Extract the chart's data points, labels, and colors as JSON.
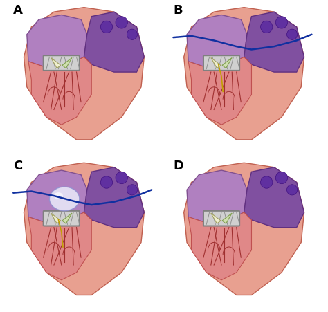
{
  "title": "",
  "panels": [
    "A",
    "B",
    "C",
    "D"
  ],
  "grid_rows": 2,
  "grid_cols": 2,
  "background_color": "#ffffff",
  "label_fontsize": 13,
  "label_fontweight": "bold",
  "label_color": "#000000",
  "panel_colors": {
    "heart_outer": "#e8a090",
    "heart_outer_edge": "#c06050",
    "left_atrium": "#b080c0",
    "left_atrium_edge": "#805090",
    "right_atrium": "#8050a0",
    "right_atrium_edge": "#603080",
    "vein_circles": "#6030a0",
    "vein_circles_edge": "#401080",
    "left_ventricle": "#e08888",
    "left_ventricle_edge": "#c05050",
    "chordae": "#a03030",
    "valve_frame": "#d0d0d0",
    "valve_frame_edge": "#808080",
    "leaflet1": "#f0f0d0",
    "leaflet1_edge": "#a0a060",
    "leaflet2": "#d0e0b0",
    "leaflet2_edge": "#80a050",
    "catheter": "#1030a0",
    "guidewire": "#c0a000",
    "balloon_fill": "#e8e8f8",
    "balloon_edge": "#9090d0",
    "stent_line": "#909090",
    "background": "#ffffff"
  },
  "figsize": [
    4.74,
    4.52
  ],
  "dpi": 100
}
